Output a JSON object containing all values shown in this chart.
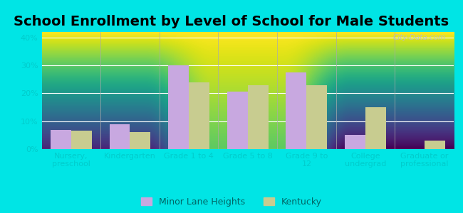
{
  "title": "School Enrollment by Level of School for Male Students",
  "categories": [
    "Nursery,\npreschool",
    "Kindergarten",
    "Grade 1 to 4",
    "Grade 5 to 8",
    "Grade 9 to\n12",
    "College\nundergrad",
    "Graduate or\nprofessional"
  ],
  "minor_lane_heights": [
    7,
    9,
    30,
    20.5,
    27.5,
    5,
    0
  ],
  "kentucky": [
    6.5,
    6,
    24,
    23,
    23,
    15,
    3
  ],
  "bar_color_mlh": "#c8a8e0",
  "bar_color_ky": "#c8cc90",
  "background_outer": "#00e5e5",
  "ylabel_ticks": [
    "0%",
    "10%",
    "20%",
    "30%",
    "40%"
  ],
  "yticks": [
    0,
    10,
    20,
    30,
    40
  ],
  "ylim": [
    0,
    42
  ],
  "legend_labels": [
    "Minor Lane Heights",
    "Kentucky"
  ],
  "watermark": "City-Data.com",
  "title_fontsize": 14,
  "tick_label_fontsize": 8,
  "tick_color": "#00cccc",
  "bar_width": 0.35
}
